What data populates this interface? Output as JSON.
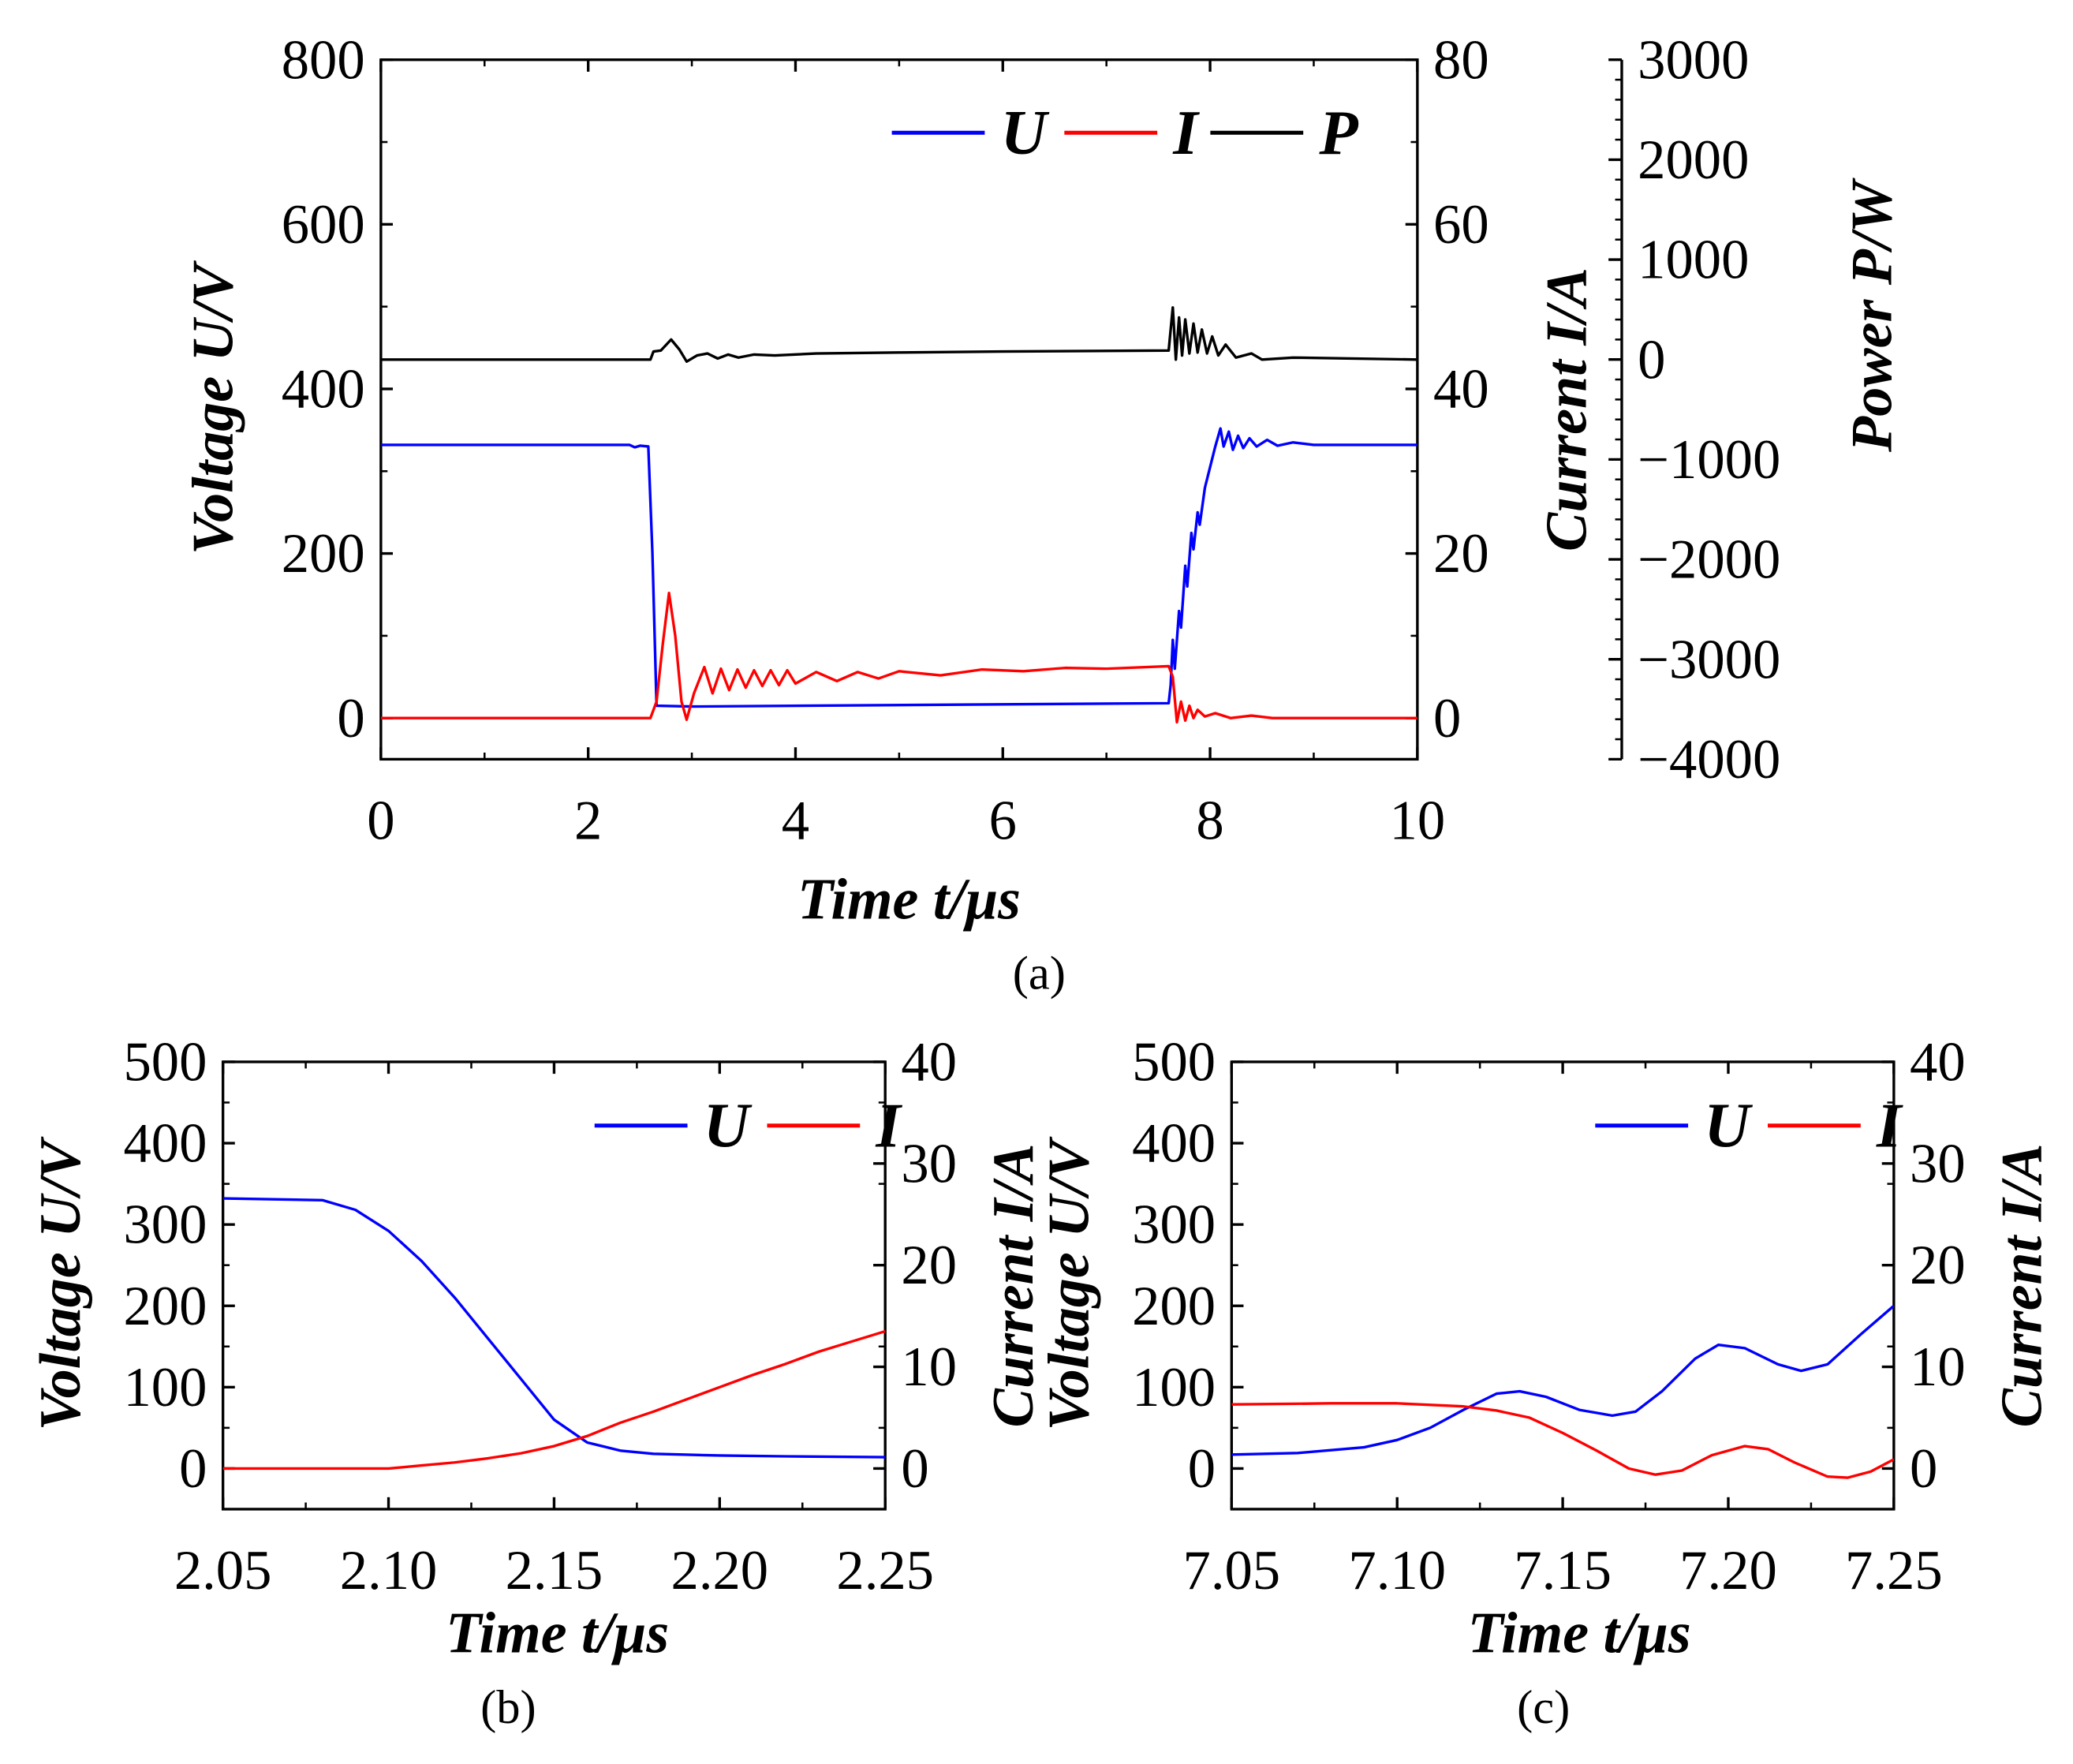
{
  "chart_data": [
    {
      "type": "line",
      "caption": "(a)",
      "xlabel": "Time  t/μs",
      "xlim": [
        0,
        10
      ],
      "xticks": [
        0,
        2,
        4,
        6,
        8,
        10
      ],
      "ylabel_left": "Voltage  U/V",
      "ylim_left": [
        -50,
        800
      ],
      "yticks_left": [
        0,
        200,
        400,
        600,
        800
      ],
      "ylabel_right": "Current  I/A",
      "ylim_right": [
        -5,
        80
      ],
      "yticks_right": [
        0,
        20,
        40,
        60,
        80
      ],
      "ylabel_right2": "Power  P/W",
      "ylim_right2": [
        -4000,
        3000
      ],
      "yticks_right2": [
        -4000,
        -3000,
        -2000,
        -1000,
        0,
        1000,
        2000,
        3000
      ],
      "yticklabels_right2": [
        "−4000",
        "−3000",
        "−2000",
        "−1000",
        "0",
        "1000",
        "2000",
        "3000"
      ],
      "legend_position": "top-right",
      "series": [
        {
          "name": "U",
          "axis": "left",
          "color": "#0000ff",
          "points": [
            [
              0,
              332
            ],
            [
              2.4,
              332
            ],
            [
              2.45,
              329
            ],
            [
              2.5,
              331
            ],
            [
              2.58,
              330
            ],
            [
              2.62,
              200
            ],
            [
              2.66,
              15
            ],
            [
              3,
              14
            ],
            [
              7.6,
              18
            ],
            [
              7.62,
              40
            ],
            [
              7.64,
              95
            ],
            [
              7.66,
              60
            ],
            [
              7.7,
              130
            ],
            [
              7.72,
              110
            ],
            [
              7.76,
              185
            ],
            [
              7.78,
              160
            ],
            [
              7.82,
              225
            ],
            [
              7.84,
              205
            ],
            [
              7.88,
              250
            ],
            [
              7.9,
              235
            ],
            [
              7.95,
              280
            ],
            [
              8.0,
              305
            ],
            [
              8.05,
              330
            ],
            [
              8.1,
              352
            ],
            [
              8.13,
              330
            ],
            [
              8.18,
              348
            ],
            [
              8.22,
              326
            ],
            [
              8.27,
              343
            ],
            [
              8.32,
              328
            ],
            [
              8.38,
              340
            ],
            [
              8.45,
              330
            ],
            [
              8.55,
              338
            ],
            [
              8.65,
              331
            ],
            [
              8.8,
              335
            ],
            [
              9,
              332
            ],
            [
              10,
              332
            ]
          ]
        },
        {
          "name": "I",
          "axis": "right",
          "color": "#ff0000",
          "points": [
            [
              0,
              0
            ],
            [
              2.6,
              0
            ],
            [
              2.66,
              2
            ],
            [
              2.72,
              9
            ],
            [
              2.78,
              15.2
            ],
            [
              2.84,
              10
            ],
            [
              2.9,
              2
            ],
            [
              2.95,
              -0.2
            ],
            [
              3.02,
              3
            ],
            [
              3.12,
              6.2
            ],
            [
              3.2,
              3
            ],
            [
              3.28,
              6
            ],
            [
              3.36,
              3.4
            ],
            [
              3.44,
              5.9
            ],
            [
              3.52,
              3.7
            ],
            [
              3.6,
              5.8
            ],
            [
              3.68,
              3.9
            ],
            [
              3.76,
              5.8
            ],
            [
              3.84,
              4
            ],
            [
              3.92,
              5.8
            ],
            [
              4.0,
              4.2
            ],
            [
              4.2,
              5.6
            ],
            [
              4.4,
              4.5
            ],
            [
              4.6,
              5.6
            ],
            [
              4.8,
              4.8
            ],
            [
              5.0,
              5.7
            ],
            [
              5.4,
              5.2
            ],
            [
              5.8,
              5.9
            ],
            [
              6.2,
              5.7
            ],
            [
              6.6,
              6.1
            ],
            [
              7.0,
              6.0
            ],
            [
              7.6,
              6.3
            ],
            [
              7.64,
              5
            ],
            [
              7.68,
              -0.5
            ],
            [
              7.72,
              2
            ],
            [
              7.76,
              -0.3
            ],
            [
              7.8,
              1.5
            ],
            [
              7.84,
              0
            ],
            [
              7.88,
              1
            ],
            [
              7.95,
              0.2
            ],
            [
              8.05,
              0.6
            ],
            [
              8.2,
              0
            ],
            [
              8.4,
              0.3
            ],
            [
              8.6,
              0
            ],
            [
              10,
              0
            ]
          ]
        },
        {
          "name": "P",
          "axis": "right2",
          "color": "#000000",
          "points": [
            [
              0,
              0
            ],
            [
              2.6,
              0
            ],
            [
              2.63,
              80
            ],
            [
              2.7,
              90
            ],
            [
              2.8,
              200
            ],
            [
              2.88,
              100
            ],
            [
              2.95,
              -20
            ],
            [
              3.05,
              40
            ],
            [
              3.15,
              60
            ],
            [
              3.25,
              10
            ],
            [
              3.35,
              50
            ],
            [
              3.45,
              20
            ],
            [
              3.6,
              50
            ],
            [
              3.8,
              40
            ],
            [
              4.2,
              60
            ],
            [
              5,
              70
            ],
            [
              6,
              80
            ],
            [
              7.6,
              90
            ],
            [
              7.64,
              520
            ],
            [
              7.67,
              0
            ],
            [
              7.7,
              420
            ],
            [
              7.73,
              40
            ],
            [
              7.76,
              400
            ],
            [
              7.8,
              60
            ],
            [
              7.84,
              360
            ],
            [
              7.88,
              70
            ],
            [
              7.92,
              300
            ],
            [
              7.97,
              60
            ],
            [
              8.02,
              230
            ],
            [
              8.08,
              40
            ],
            [
              8.15,
              150
            ],
            [
              8.25,
              20
            ],
            [
              8.4,
              60
            ],
            [
              8.5,
              0
            ],
            [
              8.8,
              20
            ],
            [
              10,
              0
            ]
          ]
        }
      ]
    },
    {
      "type": "line",
      "caption": "(b)",
      "xlabel": "Time  t/μs",
      "xlim": [
        2.05,
        2.25
      ],
      "xticks": [
        2.05,
        2.1,
        2.15,
        2.2,
        2.25
      ],
      "xticklabels": [
        "2.05",
        "2.10",
        "2.15",
        "2.20",
        "2.25"
      ],
      "ylabel_left": "Voltage  U/V",
      "ylim_left": [
        -50,
        500
      ],
      "yticks_left": [
        0,
        100,
        200,
        300,
        400,
        500
      ],
      "ylabel_right": "Current  I/A",
      "ylim_right": [
        -4,
        40
      ],
      "yticks_right": [
        0,
        10,
        20,
        30,
        40
      ],
      "legend_position": "top-right",
      "series": [
        {
          "name": "U",
          "axis": "left",
          "color": "#0000ff",
          "points": [
            [
              2.05,
              332
            ],
            [
              2.08,
              330
            ],
            [
              2.09,
              318
            ],
            [
              2.1,
              292
            ],
            [
              2.11,
              255
            ],
            [
              2.12,
              210
            ],
            [
              2.13,
              160
            ],
            [
              2.14,
              110
            ],
            [
              2.15,
              60
            ],
            [
              2.16,
              32
            ],
            [
              2.17,
              22
            ],
            [
              2.18,
              18
            ],
            [
              2.2,
              16
            ],
            [
              2.22,
              15
            ],
            [
              2.25,
              14
            ]
          ]
        },
        {
          "name": "I",
          "axis": "right",
          "color": "#ff0000",
          "points": [
            [
              2.05,
              0
            ],
            [
              2.08,
              0
            ],
            [
              2.1,
              0
            ],
            [
              2.11,
              0.3
            ],
            [
              2.12,
              0.6
            ],
            [
              2.13,
              1
            ],
            [
              2.14,
              1.5
            ],
            [
              2.15,
              2.2
            ],
            [
              2.16,
              3.2
            ],
            [
              2.17,
              4.5
            ],
            [
              2.18,
              5.6
            ],
            [
              2.19,
              6.8
            ],
            [
              2.2,
              8
            ],
            [
              2.21,
              9.2
            ],
            [
              2.22,
              10.3
            ],
            [
              2.23,
              11.5
            ],
            [
              2.24,
              12.5
            ],
            [
              2.25,
              13.5
            ]
          ]
        }
      ]
    },
    {
      "type": "line",
      "caption": "(c)",
      "xlabel": "Time  t/μs",
      "xlim": [
        7.05,
        7.25
      ],
      "xticks": [
        7.05,
        7.1,
        7.15,
        7.2,
        7.25
      ],
      "xticklabels": [
        "7.05",
        "7.10",
        "7.15",
        "7.20",
        "7.25"
      ],
      "ylabel_left": "Voltage  U/V",
      "ylim_left": [
        -50,
        500
      ],
      "yticks_left": [
        0,
        100,
        200,
        300,
        400,
        500
      ],
      "ylabel_right": "Current  I/A",
      "ylim_right": [
        -4,
        40
      ],
      "yticks_right": [
        0,
        10,
        20,
        30,
        40
      ],
      "legend_position": "top-right",
      "series": [
        {
          "name": "U",
          "axis": "left",
          "color": "#0000ff",
          "points": [
            [
              7.05,
              17
            ],
            [
              7.07,
              19
            ],
            [
              7.09,
              26
            ],
            [
              7.1,
              35
            ],
            [
              7.11,
              50
            ],
            [
              7.12,
              72
            ],
            [
              7.13,
              92
            ],
            [
              7.137,
              95
            ],
            [
              7.145,
              88
            ],
            [
              7.155,
              72
            ],
            [
              7.165,
              65
            ],
            [
              7.172,
              70
            ],
            [
              7.18,
              95
            ],
            [
              7.19,
              135
            ],
            [
              7.197,
              152
            ],
            [
              7.205,
              148
            ],
            [
              7.215,
              128
            ],
            [
              7.222,
              120
            ],
            [
              7.23,
              128
            ],
            [
              7.24,
              165
            ],
            [
              7.25,
              200
            ]
          ]
        },
        {
          "name": "I",
          "axis": "right",
          "color": "#ff0000",
          "points": [
            [
              7.05,
              6.3
            ],
            [
              7.08,
              6.4
            ],
            [
              7.1,
              6.4
            ],
            [
              7.12,
              6.1
            ],
            [
              7.13,
              5.7
            ],
            [
              7.14,
              5
            ],
            [
              7.15,
              3.5
            ],
            [
              7.16,
              1.8
            ],
            [
              7.17,
              0
            ],
            [
              7.178,
              -0.6
            ],
            [
              7.186,
              -0.2
            ],
            [
              7.195,
              1.3
            ],
            [
              7.205,
              2.2
            ],
            [
              7.212,
              1.9
            ],
            [
              7.22,
              0.6
            ],
            [
              7.23,
              -0.8
            ],
            [
              7.236,
              -0.9
            ],
            [
              7.243,
              -0.3
            ],
            [
              7.25,
              0.9
            ]
          ]
        }
      ]
    }
  ]
}
